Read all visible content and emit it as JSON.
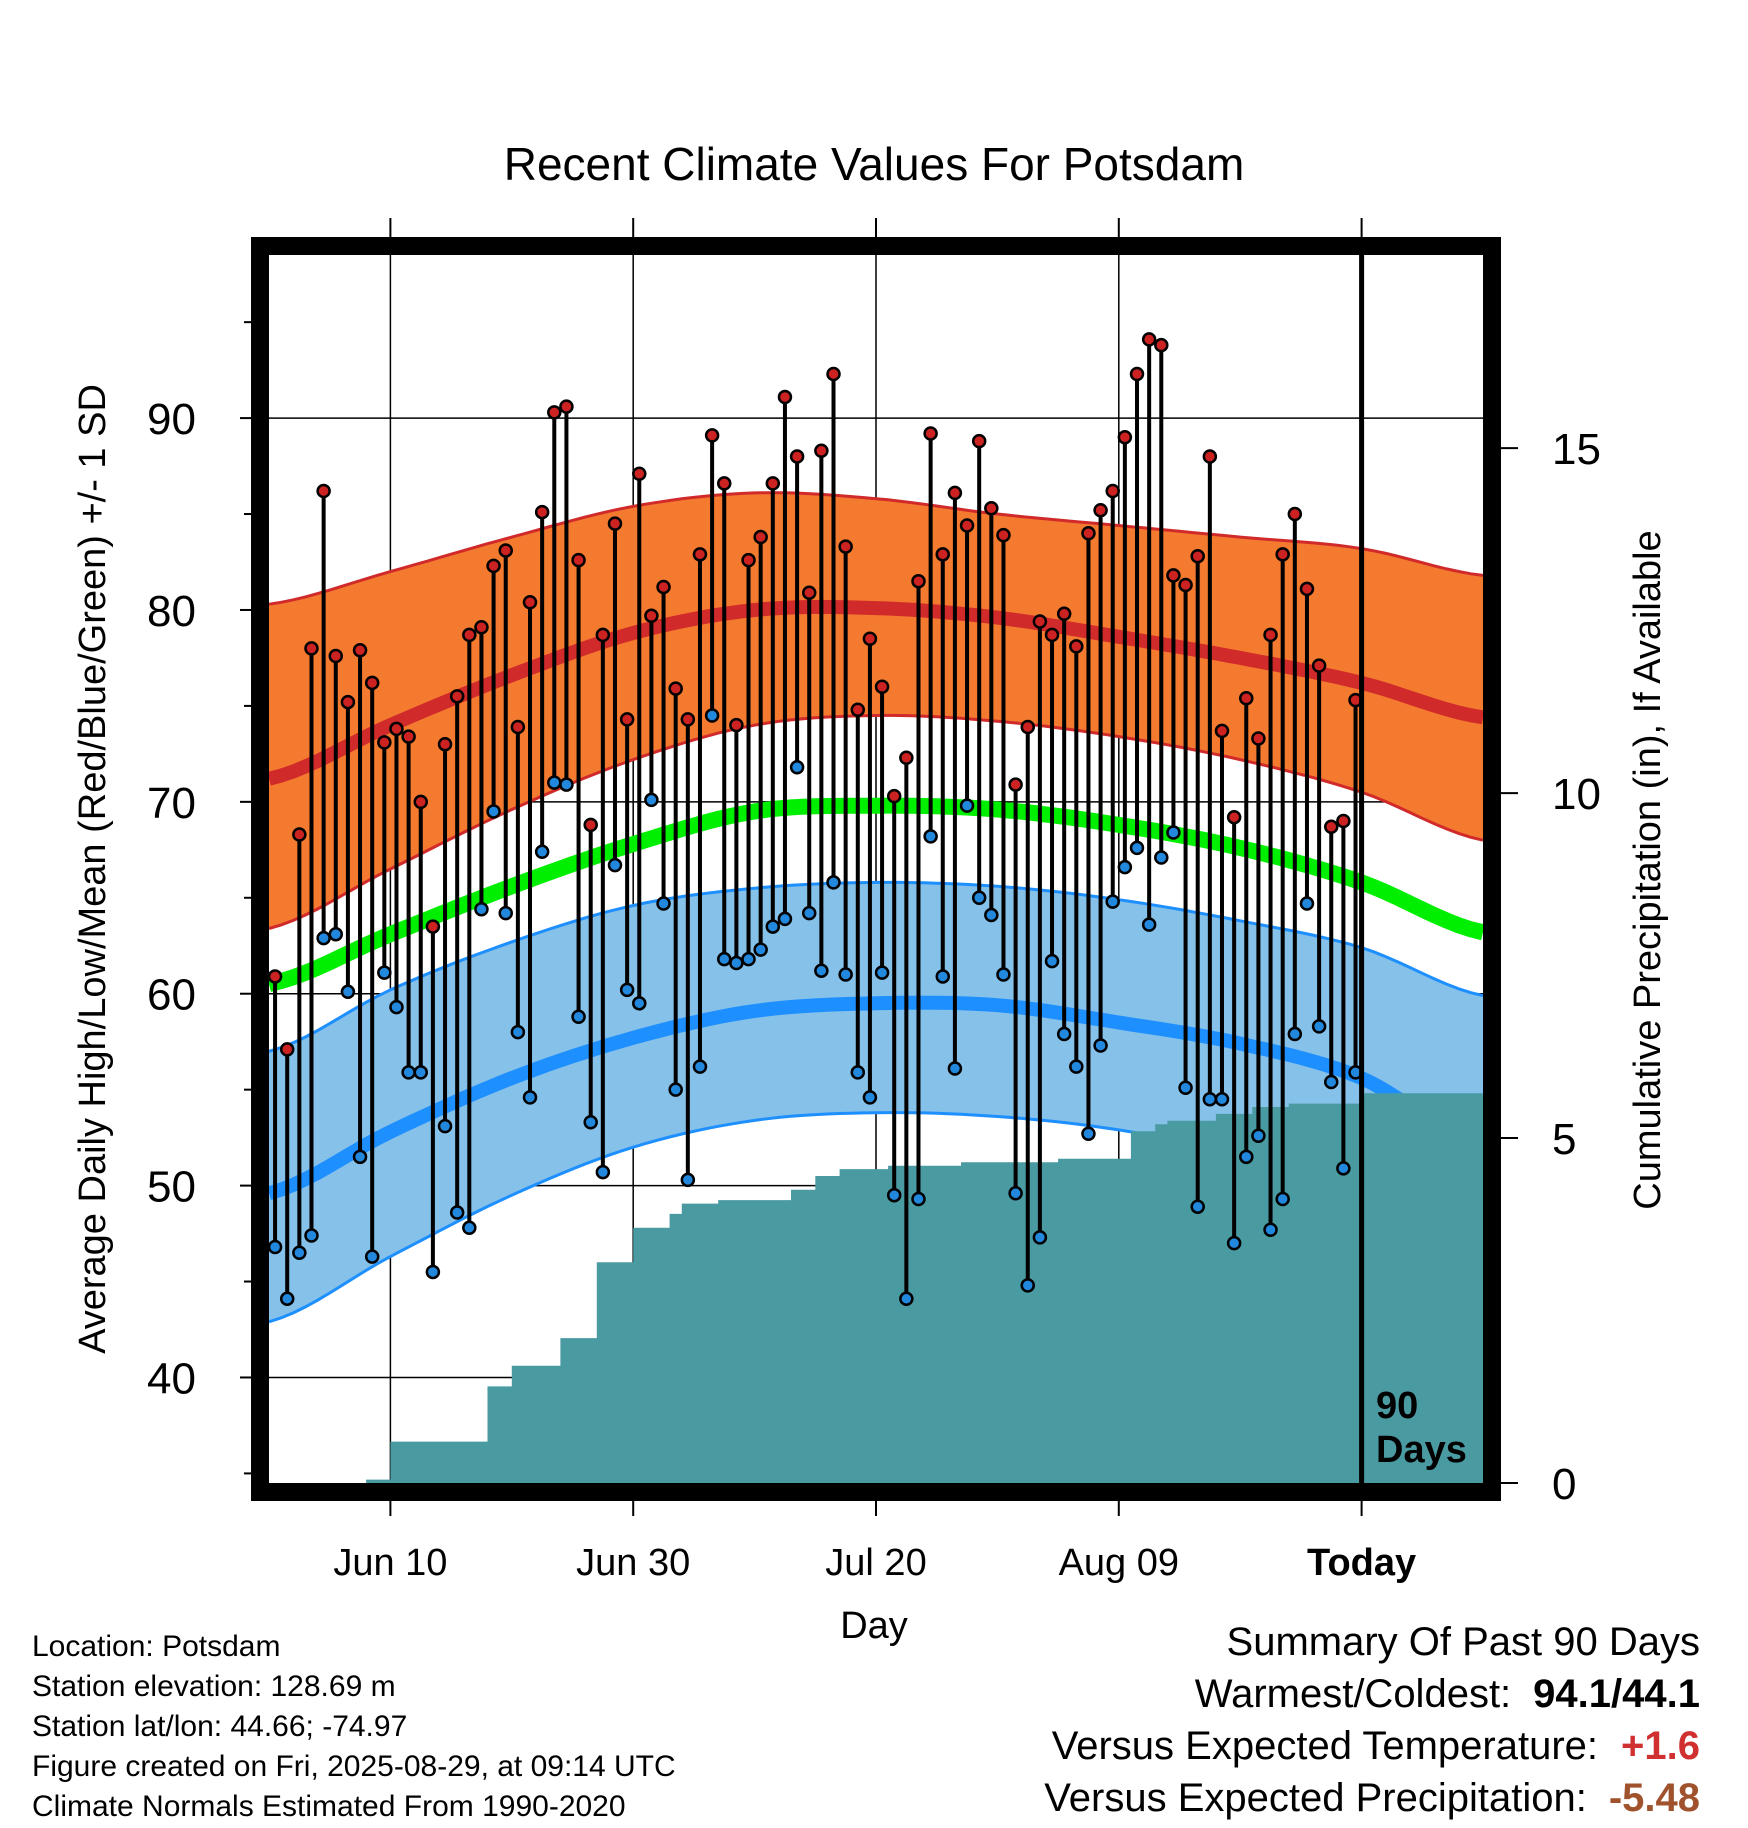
{
  "title": "Recent Climate Values For Potsdam",
  "y_label_left": "Average Daily High/Low/Mean (Red/Blue/Green) +/- 1 SD",
  "y_label_right": "Cumulative Precipitation (in), If Available",
  "x_label": "Day",
  "period_marker": [
    "90",
    "Days"
  ],
  "footer": {
    "location": "Location: Potsdam",
    "elevation": "Station elevation: 128.69 m",
    "latlon": "Station lat/lon: 44.66; -74.97",
    "created": "Figure created on Fri, 2025-08-29, at 09:14 UTC",
    "normals": "Climate Normals Estimated From 1990-2020"
  },
  "summary": {
    "title": "Summary Of Past 90 Days",
    "warm_cold_label": "Warmest/Coldest:",
    "warm_cold_value": "94.1/44.1",
    "temp_label": "Versus Expected Temperature:",
    "temp_value": "+1.6",
    "precip_label": "Versus Expected Precipitation:",
    "precip_value": "-5.48"
  },
  "colors": {
    "high_band": "#f47a2f",
    "high_line": "#d12a2a",
    "low_band": "#85c1e9",
    "low_line": "#1e8fff",
    "mean_line": "#00ee00",
    "precip": "#4a9aa2",
    "dot_high": "#cc2222",
    "dot_low": "#2288dd",
    "temp_value": "#d03030",
    "precip_value": "#a0522d"
  },
  "chart_data": {
    "type": "line",
    "x_tick_labels": [
      "Jun 10",
      "Jun 30",
      "Jul 20",
      "Aug 09",
      "Today"
    ],
    "x_tick_days": [
      10,
      30,
      50,
      70,
      90
    ],
    "xlim": [
      0,
      100
    ],
    "y_left_ticks": [
      40,
      50,
      60,
      70,
      80,
      90
    ],
    "ylim_left": [
      34.5,
      98.5
    ],
    "y_right_ticks": [
      0,
      5,
      10,
      15
    ],
    "ylim_right": [
      0,
      17.8
    ],
    "grid": true,
    "normals": {
      "day": [
        0,
        10,
        20,
        30,
        40,
        50,
        60,
        70,
        80,
        90,
        100
      ],
      "high_mean": [
        71.2,
        74.0,
        76.6,
        78.8,
        80.0,
        80.1,
        79.6,
        78.6,
        77.5,
        76.2,
        74.4
      ],
      "high_sd_upper": [
        80.3,
        82.0,
        83.8,
        85.4,
        86.1,
        85.8,
        85.0,
        84.4,
        83.8,
        83.2,
        81.8
      ],
      "high_sd_lower": [
        63.4,
        66.5,
        69.6,
        72.2,
        74.0,
        74.5,
        74.2,
        73.4,
        72.2,
        70.5,
        68.0
      ],
      "mean": [
        60.5,
        63.1,
        65.6,
        67.8,
        69.5,
        69.8,
        69.6,
        68.8,
        67.6,
        65.8,
        63.2
      ],
      "low_mean": [
        49.6,
        52.8,
        55.6,
        57.7,
        59.1,
        59.5,
        59.4,
        58.5,
        57.4,
        55.6,
        52.0
      ],
      "low_sd_upper": [
        57.0,
        60.2,
        62.7,
        64.6,
        65.5,
        65.8,
        65.6,
        64.9,
        63.8,
        62.4,
        59.9
      ],
      "low_sd_lower": [
        42.9,
        46.3,
        49.5,
        52.0,
        53.4,
        53.8,
        53.6,
        52.9,
        51.6,
        49.3,
        45.0
      ]
    },
    "daily_high": [
      60.9,
      57.1,
      68.3,
      78.0,
      86.2,
      77.6,
      75.2,
      77.9,
      76.2,
      73.1,
      73.8,
      73.4,
      70.0,
      63.5,
      73.0,
      75.5,
      78.7,
      79.1,
      82.3,
      83.1,
      73.9,
      80.4,
      85.1,
      90.3,
      90.6,
      82.6,
      68.8,
      78.7,
      84.5,
      74.3,
      87.1,
      79.7,
      81.2,
      75.9,
      74.3,
      82.9,
      89.1,
      86.6,
      74.0,
      82.6,
      83.8,
      86.6,
      91.1,
      88.0,
      80.9,
      88.3,
      92.3,
      83.3,
      74.8,
      78.5,
      76.0,
      70.3,
      72.3,
      81.5,
      89.2,
      82.9,
      86.1,
      84.4,
      88.8,
      85.3,
      83.9,
      70.9,
      73.9,
      79.4,
      78.7,
      79.8,
      78.1,
      84.0,
      85.2,
      86.2,
      89.0,
      92.3,
      94.1,
      93.8,
      81.8,
      81.3,
      82.8,
      88.0,
      73.7,
      69.2,
      75.4,
      73.3,
      78.7,
      82.9,
      85.0,
      81.1,
      77.1,
      68.7,
      69.0,
      75.3
    ],
    "daily_low": [
      46.8,
      44.1,
      46.5,
      47.4,
      62.9,
      63.1,
      60.1,
      51.5,
      46.3,
      61.1,
      59.3,
      55.9,
      55.9,
      45.5,
      53.1,
      48.6,
      47.8,
      64.4,
      69.5,
      64.2,
      58.0,
      54.6,
      67.4,
      71.0,
      70.9,
      58.8,
      53.3,
      50.7,
      66.7,
      60.2,
      59.5,
      70.1,
      64.7,
      55.0,
      50.3,
      56.2,
      74.5,
      61.8,
      61.6,
      61.8,
      62.3,
      63.5,
      63.9,
      71.8,
      64.2,
      61.2,
      65.8,
      61.0,
      55.9,
      54.6,
      61.1,
      49.5,
      44.1,
      49.3,
      68.2,
      60.9,
      56.1,
      69.8,
      65.0,
      64.1,
      61.0,
      49.6,
      44.8,
      47.3,
      61.7,
      57.9,
      56.2,
      52.7,
      57.3,
      64.8,
      66.6,
      67.6,
      63.6,
      67.1,
      68.4,
      55.1,
      48.9,
      54.5,
      54.5,
      47.0,
      51.5,
      52.6,
      47.7,
      49.3,
      57.9,
      64.7,
      58.3,
      55.4,
      50.9,
      55.9
    ],
    "cumulative_precip_day": [
      0,
      8,
      9,
      10,
      17,
      18,
      20,
      24,
      25,
      27,
      30,
      33,
      34,
      36,
      37,
      43,
      45,
      47,
      51,
      57,
      61,
      65,
      70,
      71,
      73,
      74,
      78,
      80,
      81,
      84,
      90,
      100
    ],
    "cumulative_precip_in": [
      0.0,
      0.05,
      0.05,
      0.6,
      0.6,
      1.4,
      1.7,
      2.1,
      2.1,
      3.2,
      3.7,
      3.9,
      4.05,
      4.05,
      4.1,
      4.25,
      4.45,
      4.55,
      4.6,
      4.65,
      4.65,
      4.7,
      4.7,
      5.1,
      5.2,
      5.25,
      5.35,
      5.35,
      5.45,
      5.5,
      5.65,
      5.65
    ]
  }
}
